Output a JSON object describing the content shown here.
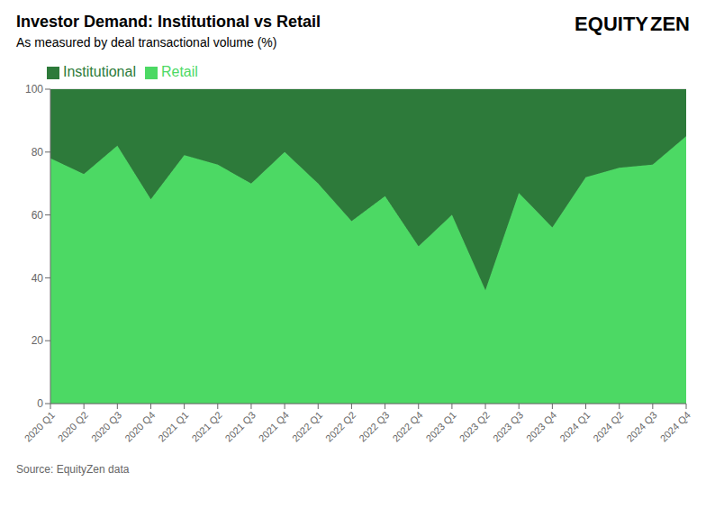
{
  "chart_data": {
    "type": "area",
    "title": "Investor Demand: Institutional vs Retail",
    "subtitle": "As measured by deal transactional volume (%)",
    "source": "Source: EquityZen data",
    "annotations": [
      "EQUITY",
      "ZEN"
    ],
    "categories": [
      "2020 Q1",
      "2020 Q2",
      "2020 Q3",
      "2020 Q4",
      "2021 Q1",
      "2021 Q2",
      "2021 Q3",
      "2021 Q4",
      "2022 Q1",
      "2022 Q2",
      "2022 Q3",
      "2022 Q4",
      "2023 Q1",
      "2023 Q2",
      "2023 Q3",
      "2023 Q4",
      "2024 Q1",
      "2024 Q2",
      "2024 Q3",
      "2024 Q4"
    ],
    "series": [
      {
        "name": "Retail",
        "color": "#4cd964",
        "values": [
          78,
          73,
          82,
          65,
          79,
          76,
          70,
          80,
          70,
          58,
          66,
          50,
          60,
          36,
          67,
          56,
          72,
          75,
          76,
          85
        ]
      },
      {
        "name": "Institutional",
        "color": "#2d7a3a",
        "values": [
          22,
          27,
          18,
          35,
          21,
          24,
          30,
          20,
          30,
          42,
          34,
          50,
          40,
          64,
          33,
          44,
          28,
          25,
          24,
          15
        ]
      }
    ],
    "stacked": true,
    "ylim": [
      0,
      100
    ],
    "yticks": [
      0,
      20,
      40,
      60,
      80,
      100
    ],
    "grid": true,
    "legend": "upper left"
  }
}
